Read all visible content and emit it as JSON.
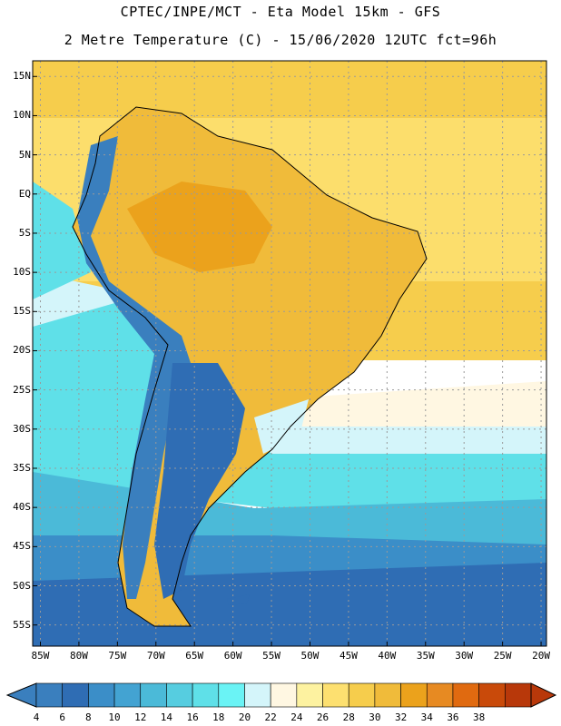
{
  "header": {
    "line1": "CPTEC/INPE/MCT -  Eta Model 15km - GFS",
    "line2": "2 Metre Temperature (C) - 15/06/2020 12UTC fct=96h"
  },
  "lat_labels": [
    "15N",
    "10N",
    "5N",
    "EQ",
    "5S",
    "10S",
    "15S",
    "20S",
    "25S",
    "30S",
    "35S",
    "40S",
    "45S",
    "50S",
    "55S"
  ],
  "lon_labels": [
    "85W",
    "80W",
    "75W",
    "70W",
    "65W",
    "60W",
    "55W",
    "50W",
    "45W",
    "40W",
    "35W",
    "30W",
    "25W",
    "20W"
  ],
  "colorbar": {
    "labels": [
      "4",
      "6",
      "8",
      "10",
      "12",
      "14",
      "16",
      "18",
      "20",
      "22",
      "24",
      "26",
      "28",
      "30",
      "32",
      "34",
      "36",
      "38"
    ],
    "colors": [
      "#3a7fbe",
      "#2f6db4",
      "#3b8ec8",
      "#43a3d2",
      "#4bbad8",
      "#56cde0",
      "#5fe0e8",
      "#6af3f5",
      "#d4f5fa",
      "#fff7e2",
      "#fdf2a0",
      "#fde070",
      "#f6cd4c",
      "#f0bb3a",
      "#eba21c",
      "#e78a22",
      "#e06a10",
      "#c94a0a",
      "#b8380a"
    ]
  },
  "ocean_colors": {
    "tropical": "#f6cd4c",
    "warm": "#fde070",
    "mild": "#fff7e2",
    "cool": "#d4f5fa",
    "cold1": "#5fe0e8",
    "cold2": "#4bbad8",
    "cold3": "#3b8ec8",
    "coldest": "#2f6db4"
  },
  "land_colors": {
    "amazon": "#eba21c",
    "interior": "#f0bb3a",
    "andes": "#3a7fbe",
    "patagonia": "#2f6db4",
    "pampas": "#56cde0",
    "southbrazil": "#d4f5fa"
  }
}
